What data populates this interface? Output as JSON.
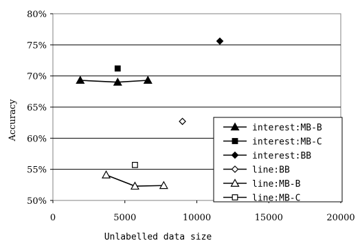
{
  "chart_data": {
    "type": "scatter",
    "title": "",
    "xlabel": "Unlabelled data size",
    "ylabel": "Accuracy",
    "xlim": [
      0,
      20000
    ],
    "ylim": [
      50,
      80
    ],
    "x_ticks": [
      "0",
      "5000",
      "10000",
      "15000",
      "20000"
    ],
    "y_ticks": [
      "50%",
      "55%",
      "60%",
      "65%",
      "70%",
      "75%",
      "80%"
    ],
    "grid": "horizontal",
    "legend_position": "bottom-right",
    "series": [
      {
        "name": "interest:MB-B",
        "marker": "filled-triangle",
        "connected": true,
        "points": [
          [
            1900,
            69.3
          ],
          [
            4500,
            69.0
          ],
          [
            6600,
            69.3
          ]
        ]
      },
      {
        "name": "interest:MB-C",
        "marker": "filled-square",
        "connected": false,
        "points": [
          [
            4500,
            71.2
          ]
        ]
      },
      {
        "name": "interest:BB",
        "marker": "filled-diamond",
        "connected": false,
        "points": [
          [
            11600,
            75.6
          ]
        ]
      },
      {
        "name": "line:BB",
        "marker": "open-diamond",
        "connected": false,
        "points": [
          [
            9000,
            62.7
          ]
        ]
      },
      {
        "name": "line:MB-B",
        "marker": "open-triangle",
        "connected": true,
        "points": [
          [
            3700,
            54.1
          ],
          [
            5700,
            52.3
          ],
          [
            7700,
            52.4
          ]
        ]
      },
      {
        "name": "line:MB-C",
        "marker": "open-square",
        "connected": false,
        "points": [
          [
            5700,
            55.7
          ]
        ]
      }
    ]
  }
}
